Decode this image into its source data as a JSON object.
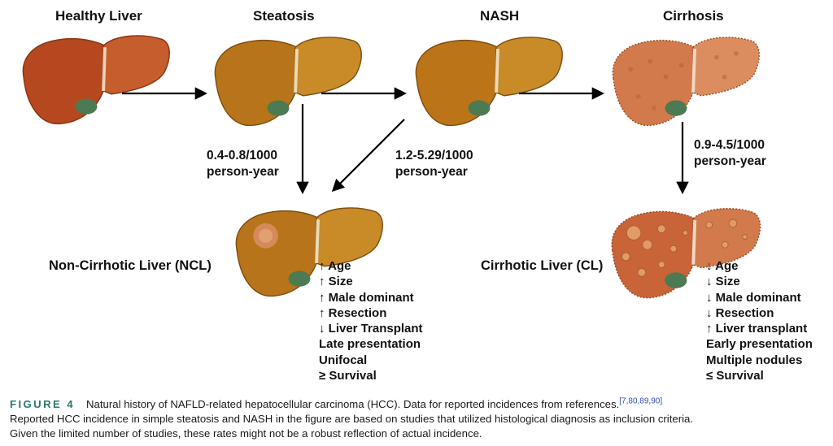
{
  "stages": [
    {
      "label": "Healthy Liver",
      "color": "#b5481f"
    },
    {
      "label": "Steatosis",
      "color": "#c07a1c"
    },
    {
      "label": "NASH",
      "color": "#c27a18"
    },
    {
      "label": "Cirrhosis",
      "color": "#d0794c"
    }
  ],
  "rates": {
    "steatosis_to_ncl": {
      "line1": "0.4-0.8/1000",
      "line2": "person-year"
    },
    "nash_to_ncl": {
      "line1": "1.2-5.29/1000",
      "line2": "person-year"
    },
    "cirrhosis_to_cl": {
      "line1": "0.9-4.5/1000",
      "line2": "person-year"
    }
  },
  "ncl": {
    "label": "Non-Cirrhotic Liver (NCL)",
    "features": [
      "↑ Age",
      "↑ Size",
      "↑ Male dominant",
      "↑ Resection",
      "↓ Liver Transplant",
      "Late presentation",
      "Unifocal",
      "≥ Survival"
    ]
  },
  "cl": {
    "label": "Cirrhotic Liver (CL)",
    "features": [
      "↓ Age",
      "↓ Size",
      "↓ Male dominant",
      "↓ Resection",
      "↑ Liver transplant",
      "Early presentation",
      "Multiple nodules",
      "≤ Survival"
    ]
  },
  "caption": {
    "figure_label": "FIGURE 4",
    "text1": "Natural history of NAFLD-related hepatocellular carcinoma (HCC). Data for reported incidences from references.",
    "refs": "[7,80,89,90]",
    "text2": "Reported HCC incidence in simple steatosis and NASH in the figure are based on studies that utilized histological diagnosis as inclusion criteria.",
    "text3": "Given the limited number of studies, these rates might not be a robust reflection of actual incidence."
  }
}
